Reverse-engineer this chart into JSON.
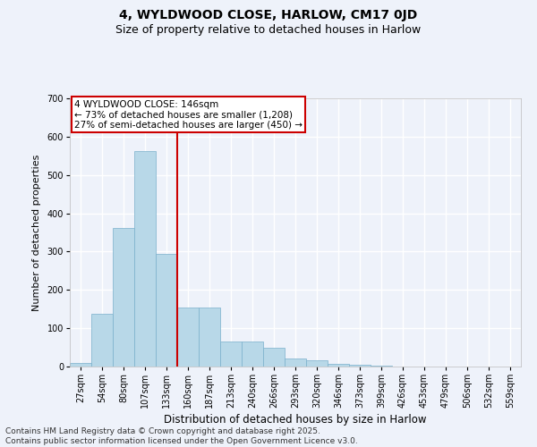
{
  "title_line1": "4, WYLDWOOD CLOSE, HARLOW, CM17 0JD",
  "title_line2": "Size of property relative to detached houses in Harlow",
  "xlabel": "Distribution of detached houses by size in Harlow",
  "ylabel": "Number of detached properties",
  "categories": [
    "27sqm",
    "54sqm",
    "80sqm",
    "107sqm",
    "133sqm",
    "160sqm",
    "187sqm",
    "213sqm",
    "240sqm",
    "266sqm",
    "293sqm",
    "320sqm",
    "346sqm",
    "373sqm",
    "399sqm",
    "426sqm",
    "453sqm",
    "479sqm",
    "506sqm",
    "532sqm",
    "559sqm"
  ],
  "values": [
    10,
    137,
    362,
    562,
    295,
    155,
    155,
    65,
    65,
    48,
    22,
    17,
    7,
    4,
    2,
    1,
    0,
    0,
    0,
    0,
    0
  ],
  "bar_color": "#b8d8e8",
  "bar_edgecolor": "#7ab0cc",
  "vline_color": "#cc0000",
  "vline_x_index": 4,
  "annotation_text_line1": "4 WYLDWOOD CLOSE: 146sqm",
  "annotation_text_line2": "← 73% of detached houses are smaller (1,208)",
  "annotation_text_line3": "27% of semi-detached houses are larger (450) →",
  "annotation_fontsize": 7.5,
  "annotation_box_color": "#ffffff",
  "annotation_box_edgecolor": "#cc0000",
  "ylim": [
    0,
    700
  ],
  "yticks": [
    0,
    100,
    200,
    300,
    400,
    500,
    600,
    700
  ],
  "title_fontsize": 10,
  "subtitle_fontsize": 9,
  "xlabel_fontsize": 8.5,
  "ylabel_fontsize": 8,
  "tick_fontsize": 7,
  "footer_line1": "Contains HM Land Registry data © Crown copyright and database right 2025.",
  "footer_line2": "Contains public sector information licensed under the Open Government Licence v3.0.",
  "footer_fontsize": 6.5,
  "background_color": "#eef2fa",
  "grid_color": "#ffffff"
}
